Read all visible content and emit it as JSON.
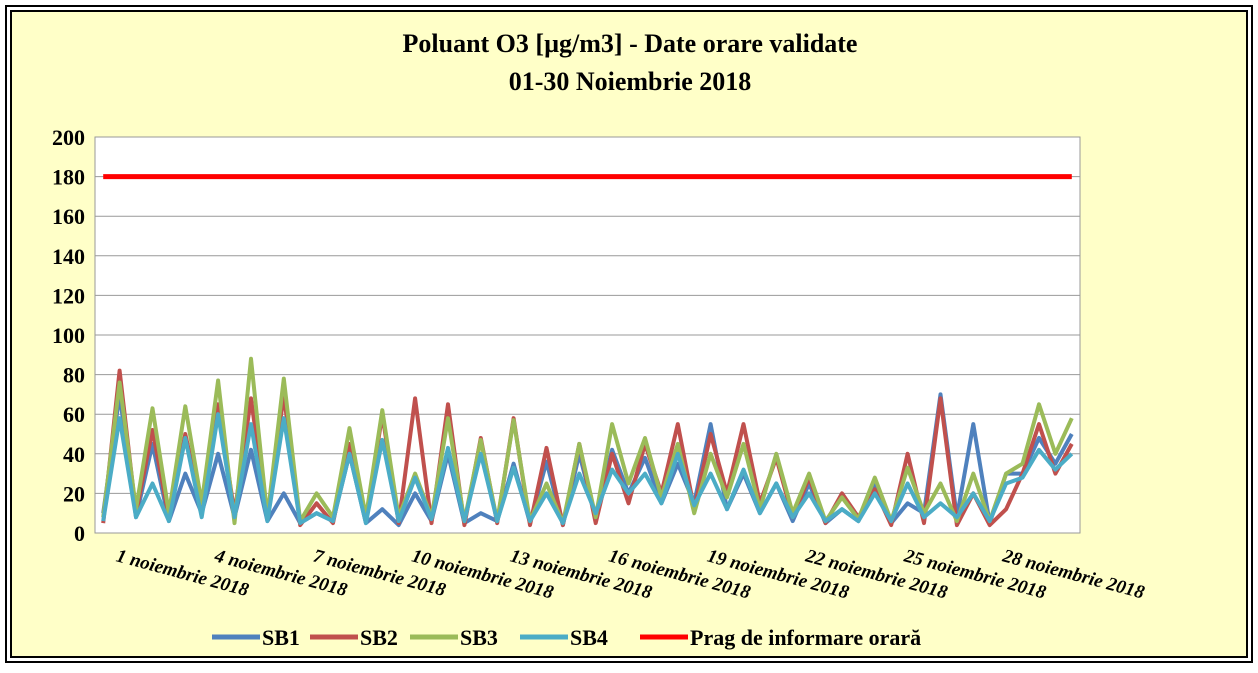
{
  "chart_data": {
    "type": "line",
    "title": "Poluant O3 [µg/m3] - Date orare validate",
    "subtitle": "01-30 Noiembrie 2018",
    "categories": [
      "1 noiembrie 2018",
      null,
      null,
      null,
      null,
      null,
      "4 noiembrie 2018",
      null,
      null,
      null,
      null,
      null,
      "7 noiembrie 2018",
      null,
      null,
      null,
      null,
      null,
      "10 noiembrie 2018",
      null,
      null,
      null,
      null,
      null,
      "13 noiembrie 2018",
      null,
      null,
      null,
      null,
      null,
      "16 noiembrie 2018",
      null,
      null,
      null,
      null,
      null,
      "19 noiembrie 2018",
      null,
      null,
      null,
      null,
      null,
      "22 noiembrie 2018",
      null,
      null,
      null,
      null,
      null,
      "25 noiembrie 2018",
      null,
      null,
      null,
      null,
      null,
      "28 noiembrie 2018",
      null,
      null,
      null,
      null,
      null
    ],
    "series": [
      {
        "name": "SB1",
        "color": "#4f81bd",
        "values": [
          10,
          70,
          8,
          45,
          6,
          30,
          10,
          40,
          8,
          42,
          6,
          20,
          5,
          10,
          6,
          40,
          5,
          12,
          4,
          20,
          6,
          40,
          5,
          10,
          6,
          35,
          5,
          36,
          4,
          40,
          8,
          42,
          20,
          38,
          15,
          35,
          15,
          55,
          12,
          30,
          10,
          25,
          6,
          25,
          5,
          12,
          6,
          25,
          5,
          15,
          10,
          70,
          8,
          55,
          5,
          30,
          30,
          48,
          35,
          50
        ]
      },
      {
        "name": "SB2",
        "color": "#c0504d",
        "values": [
          5,
          82,
          10,
          52,
          8,
          50,
          12,
          65,
          10,
          68,
          8,
          70,
          4,
          15,
          5,
          45,
          6,
          60,
          5,
          68,
          5,
          65,
          4,
          48,
          5,
          58,
          4,
          43,
          4,
          45,
          5,
          40,
          15,
          45,
          20,
          55,
          12,
          50,
          20,
          55,
          15,
          38,
          8,
          28,
          5,
          20,
          8,
          22,
          4,
          40,
          5,
          68,
          4,
          20,
          4,
          12,
          30,
          55,
          30,
          45
        ]
      },
      {
        "name": "SB3",
        "color": "#9bbb59",
        "values": [
          8,
          76,
          12,
          63,
          10,
          64,
          15,
          77,
          5,
          88,
          8,
          78,
          6,
          20,
          8,
          53,
          8,
          62,
          8,
          30,
          8,
          58,
          6,
          47,
          6,
          57,
          6,
          25,
          5,
          45,
          8,
          55,
          25,
          48,
          18,
          45,
          10,
          40,
          18,
          45,
          12,
          40,
          10,
          30,
          6,
          18,
          7,
          28,
          6,
          33,
          10,
          25,
          6,
          30,
          6,
          30,
          35,
          65,
          40,
          58
        ]
      },
      {
        "name": "SB4",
        "color": "#4bacc6",
        "values": [
          6,
          58,
          8,
          25,
          6,
          48,
          8,
          60,
          8,
          55,
          6,
          58,
          5,
          10,
          6,
          40,
          5,
          47,
          6,
          28,
          7,
          43,
          6,
          40,
          6,
          33,
          6,
          20,
          5,
          30,
          10,
          32,
          20,
          30,
          15,
          40,
          14,
          30,
          12,
          32,
          10,
          25,
          8,
          20,
          6,
          12,
          6,
          20,
          6,
          25,
          8,
          15,
          8,
          20,
          6,
          25,
          28,
          42,
          32,
          40
        ]
      },
      {
        "name": "Prag de informare orară",
        "color": "#ff0000",
        "values": [
          180,
          180,
          180,
          180,
          180,
          180,
          180,
          180,
          180,
          180,
          180,
          180,
          180,
          180,
          180,
          180,
          180,
          180,
          180,
          180,
          180,
          180,
          180,
          180,
          180,
          180,
          180,
          180,
          180,
          180,
          180,
          180,
          180,
          180,
          180,
          180,
          180,
          180,
          180,
          180,
          180,
          180,
          180,
          180,
          180,
          180,
          180,
          180,
          180,
          180,
          180,
          180,
          180,
          180,
          180,
          180,
          180,
          180,
          180,
          180
        ]
      }
    ],
    "ylim": [
      0,
      200
    ],
    "yticks": [
      0,
      20,
      40,
      60,
      80,
      100,
      120,
      140,
      160,
      180,
      200
    ],
    "grid": true,
    "legend": "bottom"
  }
}
